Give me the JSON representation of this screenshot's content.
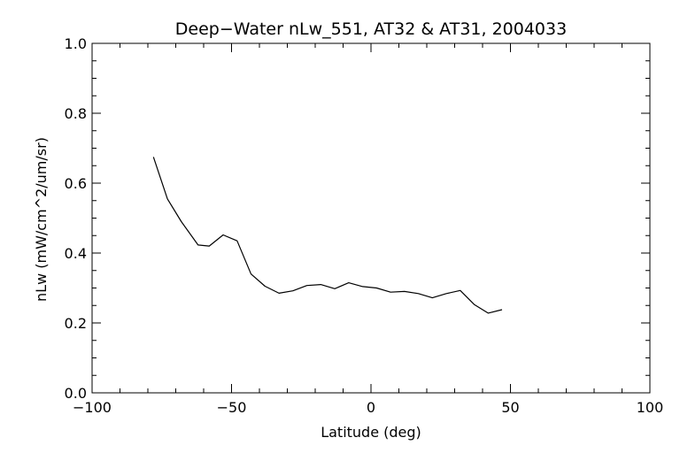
{
  "chart_data": {
    "type": "line",
    "title": "Deep−Water nLw_551, AT32 & AT31, 2004033",
    "xlabel": "Latitude (deg)",
    "ylabel": "nLw (mW/cm^2/um/sr)",
    "xlim": [
      -100,
      100
    ],
    "ylim": [
      0.0,
      1.0
    ],
    "x_ticks": [
      -100,
      -50,
      0,
      50,
      100
    ],
    "x_tick_labels": [
      "−100",
      "−50",
      "0",
      "50",
      "100"
    ],
    "x_minor_step": 10,
    "y_ticks": [
      0.0,
      0.2,
      0.4,
      0.6,
      0.8,
      1.0
    ],
    "y_tick_labels": [
      "0.0",
      "0.2",
      "0.4",
      "0.6",
      "0.8",
      "1.0"
    ],
    "y_minor_step": 0.05,
    "grid": false,
    "series": [
      {
        "x": [
          -78,
          -73,
          -68,
          -62,
          -58,
          -53,
          -48,
          -43,
          -38,
          -33,
          -28,
          -23,
          -18,
          -13,
          -8,
          -3,
          2,
          7,
          12,
          17,
          22,
          27,
          32,
          37,
          42,
          47
        ],
        "y": [
          0.675,
          0.555,
          0.49,
          0.423,
          0.42,
          0.452,
          0.435,
          0.34,
          0.305,
          0.285,
          0.292,
          0.307,
          0.31,
          0.298,
          0.315,
          0.304,
          0.3,
          0.288,
          0.29,
          0.284,
          0.272,
          0.284,
          0.293,
          0.253,
          0.228,
          0.238
        ]
      }
    ]
  }
}
